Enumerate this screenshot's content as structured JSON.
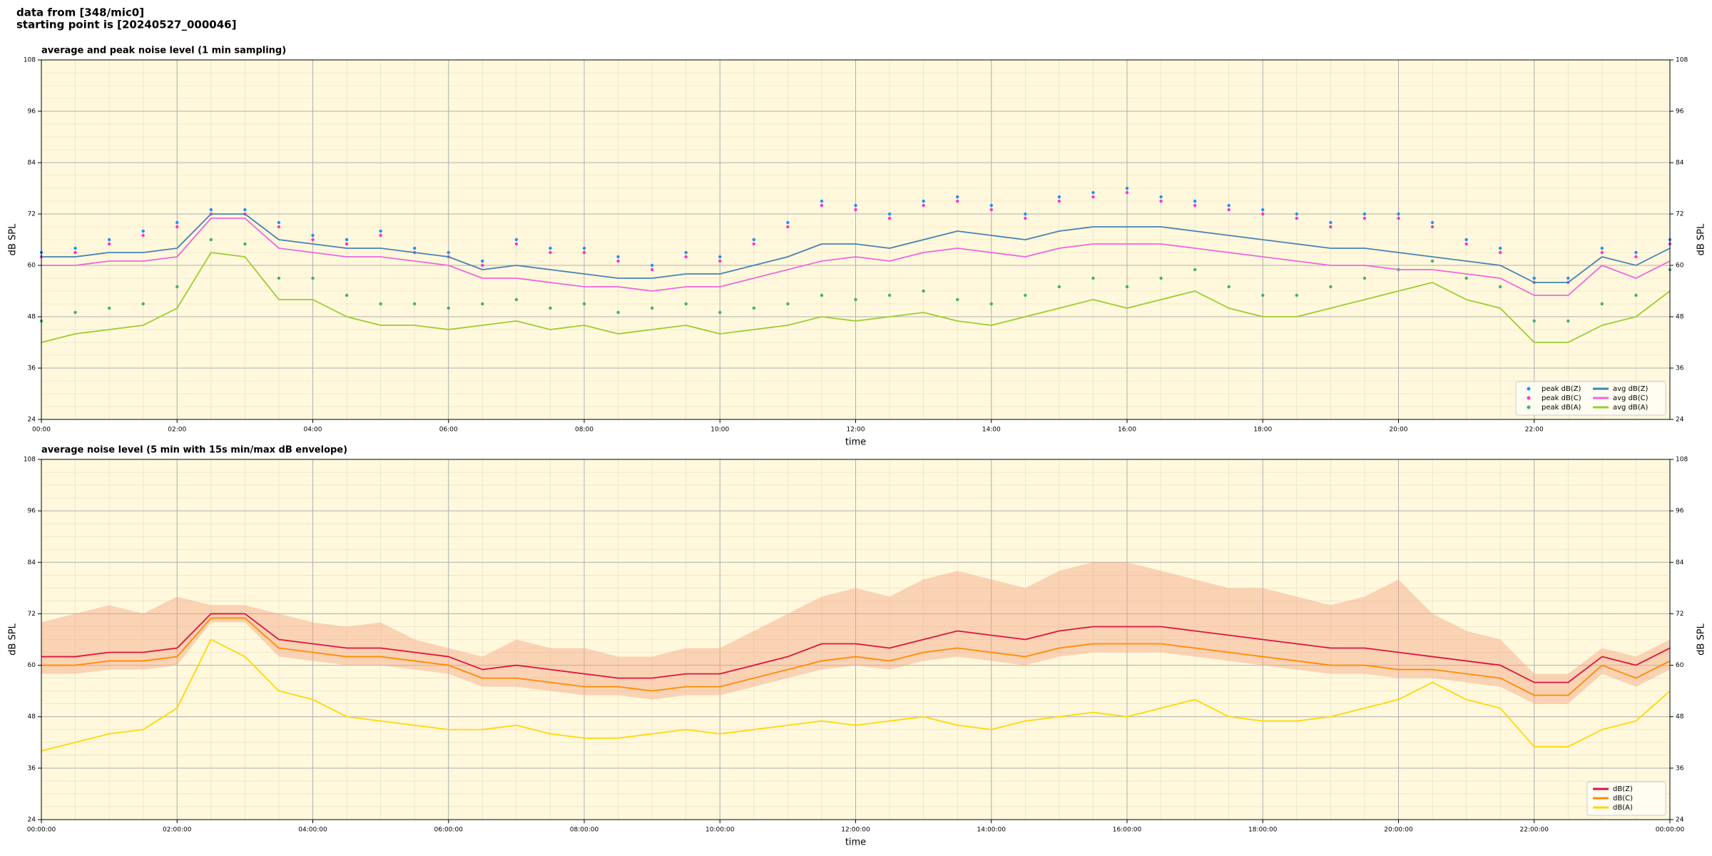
{
  "header": {
    "lines": [
      "data from [348/mic0]",
      "starting point is [20240527_000046]"
    ]
  },
  "chart_data": [
    {
      "type": "line",
      "title": "average and peak noise level (1 min sampling)",
      "xlabel": "time",
      "ylabel": "dB SPL",
      "x": [
        0,
        0.5,
        1,
        1.5,
        2,
        2.5,
        3,
        3.5,
        4,
        4.5,
        5,
        5.5,
        6,
        6.5,
        7,
        7.5,
        8,
        8.5,
        9,
        9.5,
        10,
        10.5,
        11,
        11.5,
        12,
        12.5,
        13,
        13.5,
        14,
        14.5,
        15,
        15.5,
        16,
        16.5,
        17,
        17.5,
        18,
        18.5,
        19,
        19.5,
        20,
        20.5,
        21,
        21.5,
        22,
        22.5,
        23,
        23.5,
        24
      ],
      "xlim": [
        0,
        24
      ],
      "xticks": [
        {
          "value": 0,
          "label": "00:00"
        },
        {
          "value": 2,
          "label": "02:00"
        },
        {
          "value": 4,
          "label": "04:00"
        },
        {
          "value": 6,
          "label": "06:00"
        },
        {
          "value": 8,
          "label": "08:00"
        },
        {
          "value": 10,
          "label": "10:00"
        },
        {
          "value": 12,
          "label": "12:00"
        },
        {
          "value": 14,
          "label": "14:00"
        },
        {
          "value": 16,
          "label": "16:00"
        },
        {
          "value": 18,
          "label": "18:00"
        },
        {
          "value": 20,
          "label": "20:00"
        },
        {
          "value": 22,
          "label": "22:00"
        }
      ],
      "ylim": [
        24,
        108
      ],
      "yticks": [
        24,
        36,
        48,
        60,
        72,
        84,
        96,
        108
      ],
      "grid": true,
      "legend": "lower right",
      "legend_columns": 2,
      "series": [
        {
          "name": "peak dB(Z)",
          "mode": "markers",
          "color": "#1e90ff",
          "values": [
            63,
            64,
            66,
            68,
            70,
            73,
            73,
            70,
            67,
            66,
            68,
            64,
            63,
            61,
            66,
            64,
            64,
            62,
            60,
            63,
            62,
            66,
            70,
            75,
            74,
            72,
            75,
            76,
            74,
            72,
            76,
            77,
            78,
            76,
            75,
            74,
            73,
            72,
            70,
            72,
            72,
            70,
            66,
            64,
            57,
            57,
            64,
            63,
            66
          ]
        },
        {
          "name": "peak dB(C)",
          "mode": "markers",
          "color": "#ff33cc",
          "values": [
            62,
            63,
            65,
            67,
            69,
            72,
            72,
            69,
            66,
            65,
            67,
            63,
            62,
            60,
            65,
            63,
            63,
            61,
            59,
            62,
            61,
            65,
            69,
            74,
            73,
            71,
            74,
            75,
            73,
            71,
            75,
            76,
            77,
            75,
            74,
            73,
            72,
            71,
            69,
            71,
            71,
            69,
            65,
            63,
            56,
            56,
            63,
            62,
            65
          ]
        },
        {
          "name": "peak dB(A)",
          "mode": "markers",
          "color": "#3cb371",
          "values": [
            47,
            49,
            50,
            51,
            55,
            66,
            65,
            57,
            57,
            53,
            51,
            51,
            50,
            51,
            52,
            50,
            51,
            49,
            50,
            51,
            49,
            50,
            51,
            53,
            52,
            53,
            54,
            52,
            51,
            53,
            55,
            57,
            55,
            57,
            59,
            55,
            53,
            53,
            55,
            57,
            59,
            61,
            57,
            55,
            47,
            47,
            51,
            53,
            59
          ]
        },
        {
          "name": "avg dB(Z)",
          "mode": "line",
          "color": "#4682b4",
          "values": [
            62,
            62,
            63,
            63,
            64,
            72,
            72,
            66,
            65,
            64,
            64,
            63,
            62,
            59,
            60,
            59,
            58,
            57,
            57,
            58,
            58,
            60,
            62,
            65,
            65,
            64,
            66,
            68,
            67,
            66,
            68,
            69,
            69,
            69,
            68,
            67,
            66,
            65,
            64,
            64,
            63,
            62,
            61,
            60,
            56,
            56,
            62,
            60,
            64
          ]
        },
        {
          "name": "avg dB(C)",
          "mode": "line",
          "color": "#ee66dd",
          "values": [
            60,
            60,
            61,
            61,
            62,
            71,
            71,
            64,
            63,
            62,
            62,
            61,
            60,
            57,
            57,
            56,
            55,
            55,
            54,
            55,
            55,
            57,
            59,
            61,
            62,
            61,
            63,
            64,
            63,
            62,
            64,
            65,
            65,
            65,
            64,
            63,
            62,
            61,
            60,
            60,
            59,
            59,
            58,
            57,
            53,
            53,
            60,
            57,
            61
          ]
        },
        {
          "name": "avg dB(A)",
          "mode": "line",
          "color": "#9acd32",
          "values": [
            42,
            44,
            45,
            46,
            50,
            63,
            62,
            52,
            52,
            48,
            46,
            46,
            45,
            46,
            47,
            45,
            46,
            44,
            45,
            46,
            44,
            45,
            46,
            48,
            47,
            48,
            49,
            47,
            46,
            48,
            50,
            52,
            50,
            52,
            54,
            50,
            48,
            48,
            50,
            52,
            54,
            56,
            52,
            50,
            42,
            42,
            46,
            48,
            54
          ]
        }
      ]
    },
    {
      "type": "line",
      "title": "average noise level (5 min with 15s min/max dB envelope)",
      "xlabel": "time",
      "ylabel": "dB SPL",
      "x": [
        0,
        0.5,
        1,
        1.5,
        2,
        2.5,
        3,
        3.5,
        4,
        4.5,
        5,
        5.5,
        6,
        6.5,
        7,
        7.5,
        8,
        8.5,
        9,
        9.5,
        10,
        10.5,
        11,
        11.5,
        12,
        12.5,
        13,
        13.5,
        14,
        14.5,
        15,
        15.5,
        16,
        16.5,
        17,
        17.5,
        18,
        18.5,
        19,
        19.5,
        20,
        20.5,
        21,
        21.5,
        22,
        22.5,
        23,
        23.5,
        24
      ],
      "xlim": [
        0,
        24
      ],
      "xticks": [
        {
          "value": 0,
          "label": "00:00:00"
        },
        {
          "value": 2,
          "label": "02:00:00"
        },
        {
          "value": 4,
          "label": "04:00:00"
        },
        {
          "value": 6,
          "label": "06:00:00"
        },
        {
          "value": 8,
          "label": "08:00:00"
        },
        {
          "value": 10,
          "label": "10:00:00"
        },
        {
          "value": 12,
          "label": "12:00:00"
        },
        {
          "value": 14,
          "label": "14:00:00"
        },
        {
          "value": 16,
          "label": "16:00:00"
        },
        {
          "value": 18,
          "label": "18:00:00"
        },
        {
          "value": 20,
          "label": "20:00:00"
        },
        {
          "value": 22,
          "label": "22:00:00"
        },
        {
          "value": 24,
          "label": "00:00:00"
        }
      ],
      "ylim": [
        24,
        108
      ],
      "yticks": [
        24,
        36,
        48,
        60,
        72,
        84,
        96,
        108
      ],
      "grid": true,
      "legend": "lower right",
      "legend_columns": 1,
      "envelope": {
        "color": "#f4a582",
        "max": [
          70,
          72,
          74,
          72,
          76,
          74,
          74,
          72,
          70,
          69,
          70,
          66,
          64,
          62,
          66,
          64,
          64,
          62,
          62,
          64,
          64,
          68,
          72,
          76,
          78,
          76,
          80,
          82,
          80,
          78,
          82,
          84,
          84,
          82,
          80,
          78,
          78,
          76,
          74,
          76,
          80,
          72,
          68,
          66,
          58,
          58,
          64,
          62,
          66
        ],
        "min": [
          58,
          58,
          59,
          59,
          60,
          70,
          70,
          62,
          61,
          60,
          60,
          59,
          58,
          55,
          55,
          54,
          53,
          53,
          52,
          53,
          53,
          55,
          57,
          59,
          60,
          59,
          61,
          62,
          61,
          60,
          62,
          63,
          63,
          63,
          62,
          61,
          60,
          59,
          58,
          58,
          57,
          57,
          56,
          55,
          51,
          51,
          58,
          55,
          59
        ]
      },
      "series": [
        {
          "name": "dB(Z)",
          "mode": "line",
          "color": "#dc143c",
          "values": [
            62,
            62,
            63,
            63,
            64,
            72,
            72,
            66,
            65,
            64,
            64,
            63,
            62,
            59,
            60,
            59,
            58,
            57,
            57,
            58,
            58,
            60,
            62,
            65,
            65,
            64,
            66,
            68,
            67,
            66,
            68,
            69,
            69,
            69,
            68,
            67,
            66,
            65,
            64,
            64,
            63,
            62,
            61,
            60,
            56,
            56,
            62,
            60,
            64
          ]
        },
        {
          "name": "dB(C)",
          "mode": "line",
          "color": "#ff8c00",
          "values": [
            60,
            60,
            61,
            61,
            62,
            71,
            71,
            64,
            63,
            62,
            62,
            61,
            60,
            57,
            57,
            56,
            55,
            55,
            54,
            55,
            55,
            57,
            59,
            61,
            62,
            61,
            63,
            64,
            63,
            62,
            64,
            65,
            65,
            65,
            64,
            63,
            62,
            61,
            60,
            60,
            59,
            59,
            58,
            57,
            53,
            53,
            60,
            57,
            61
          ]
        },
        {
          "name": "dB(A)",
          "mode": "line",
          "color": "#ffd700",
          "values": [
            40,
            42,
            44,
            45,
            50,
            66,
            62,
            54,
            52,
            48,
            47,
            46,
            45,
            45,
            46,
            44,
            43,
            43,
            44,
            45,
            44,
            45,
            46,
            47,
            46,
            47,
            48,
            46,
            45,
            47,
            48,
            49,
            48,
            50,
            52,
            48,
            47,
            47,
            48,
            50,
            52,
            56,
            52,
            50,
            41,
            41,
            45,
            47,
            54
          ]
        }
      ]
    }
  ]
}
